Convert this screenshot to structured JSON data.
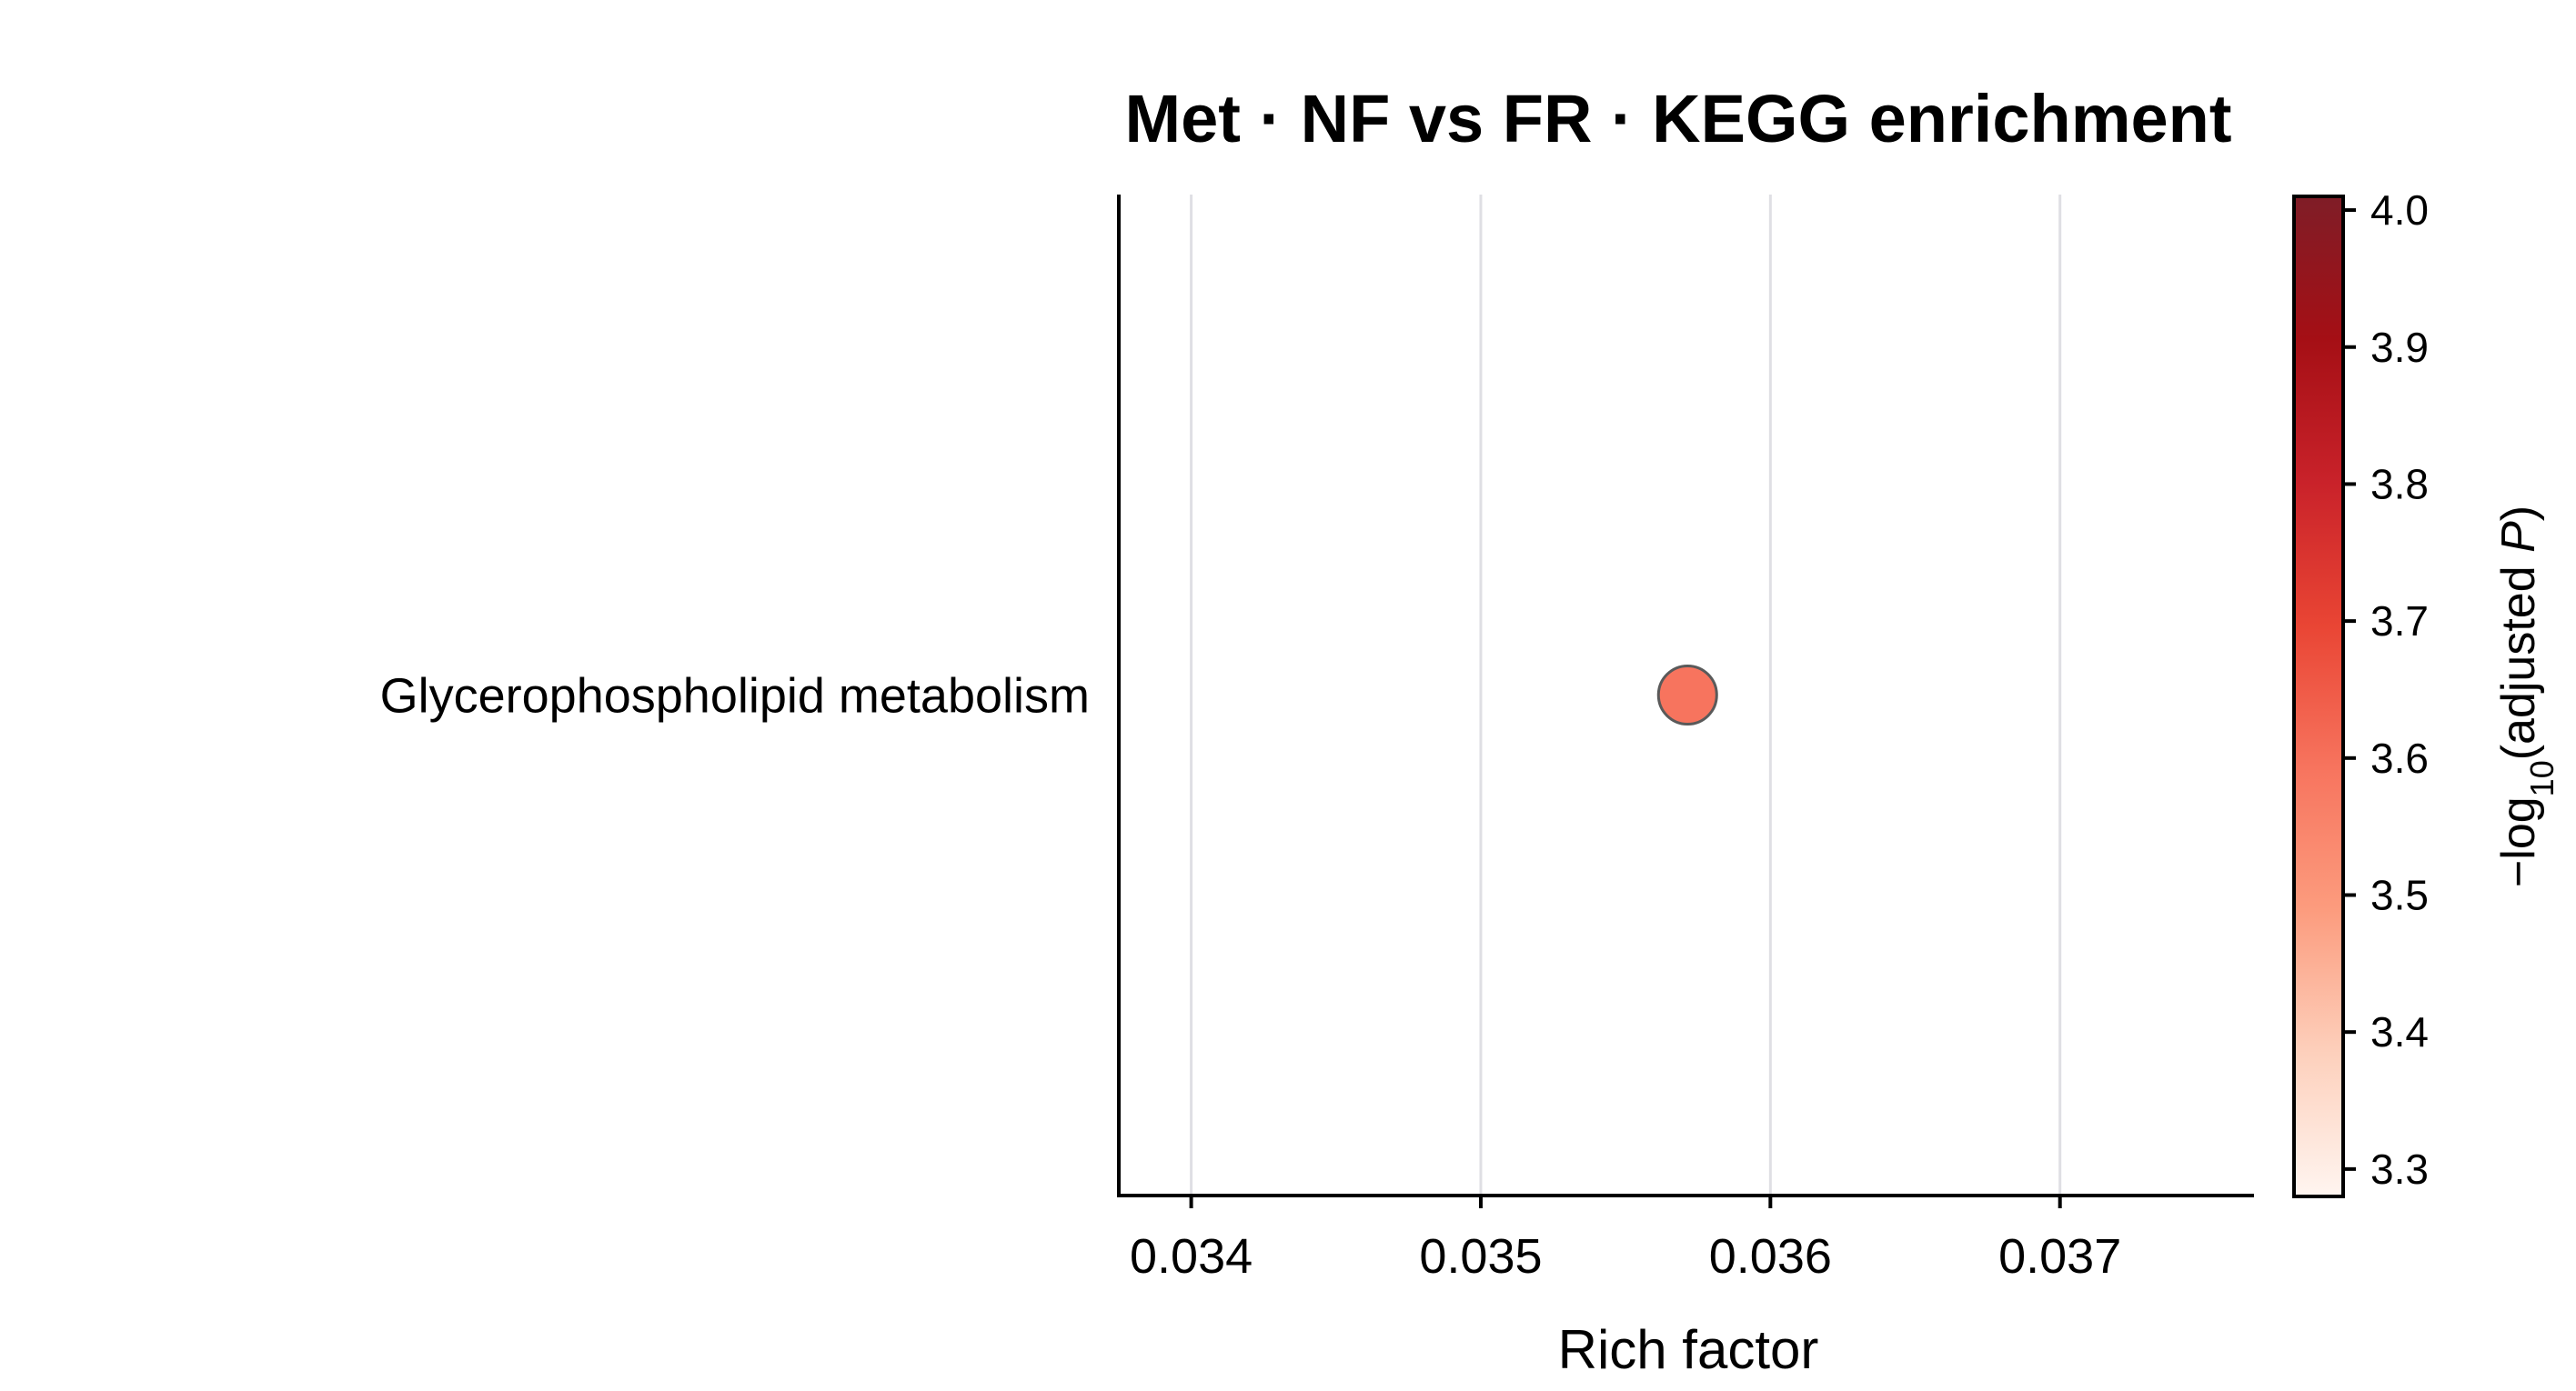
{
  "chart_data": {
    "type": "scatter",
    "title": "Met · NF vs FR · KEGG enrichment",
    "xlabel": "Rich factor",
    "ylabel": "",
    "xlim": [
      0.03375,
      0.03767
    ],
    "xticks": [
      0.034,
      0.035,
      0.036,
      0.037
    ],
    "xtick_labels": [
      "0.034",
      "0.035",
      "0.036",
      "0.037"
    ],
    "grid": "vertical",
    "categories": [
      "Glycerophospholipid metabolism"
    ],
    "points": [
      {
        "category": "Glycerophospholipid metabolism",
        "x": 0.035714,
        "neg_log10_padj": 3.67,
        "color": "#f7745e"
      }
    ],
    "colorbar": {
      "label_prefix": "−log",
      "label_sub": "10",
      "label_suffix": "(adjusted ",
      "label_italic": "P",
      "label_close": ")",
      "range": [
        3.28,
        4.01
      ],
      "ticks": [
        3.3,
        3.4,
        3.5,
        3.6,
        3.7,
        3.8,
        3.9,
        4.0
      ],
      "tick_labels": [
        "3.3",
        "3.4",
        "3.5",
        "3.6",
        "3.7",
        "3.8",
        "3.9",
        "4.0"
      ],
      "colormap": "Reds",
      "colors": [
        "#fff5f0",
        "#fdd0bc",
        "#fc9c7e",
        "#f7745e",
        "#e94534",
        "#c9222a",
        "#a50f15",
        "#7f1d27"
      ]
    }
  }
}
